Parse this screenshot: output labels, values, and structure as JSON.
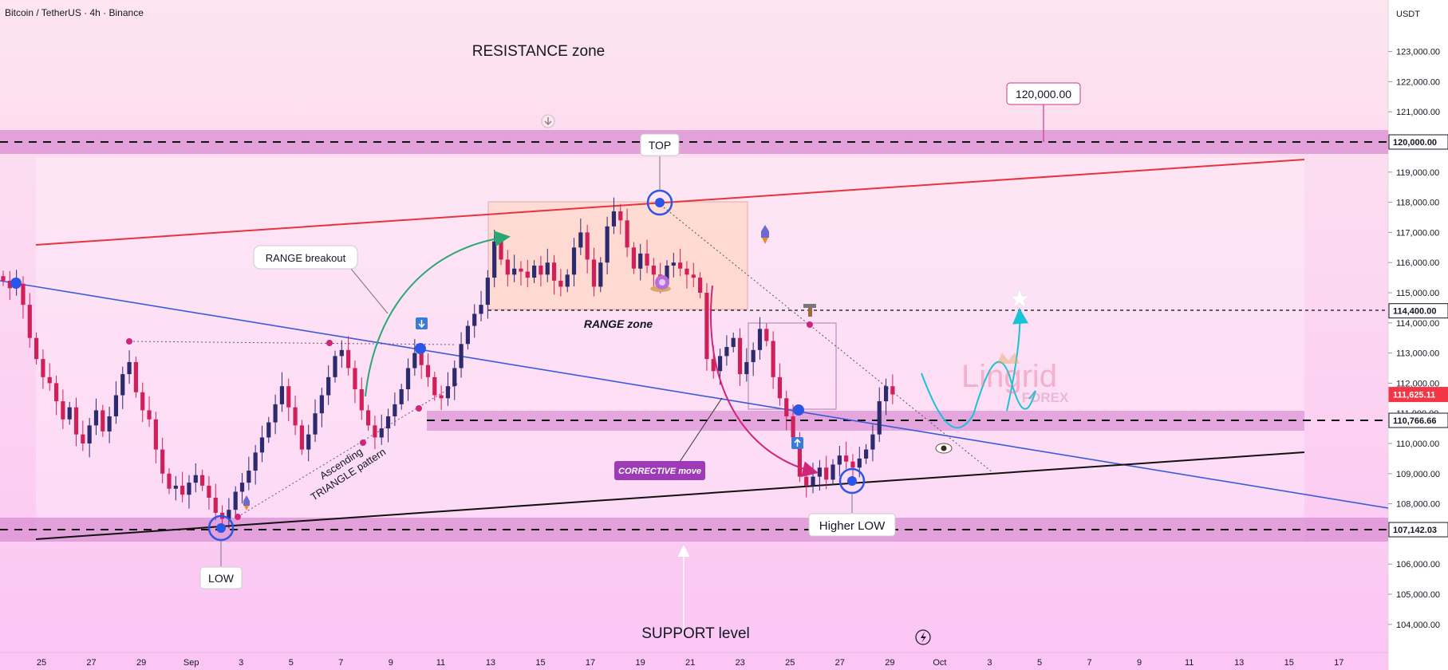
{
  "header": {
    "symbol": "Bitcoin / TetherUS · 4h · Binance",
    "currency": "USDT"
  },
  "y_axis_ticks": [
    "123,000.00",
    "122,000.00",
    "121,000.00",
    "119,000.00",
    "118,000.00",
    "117,000.00",
    "116,000.00",
    "115,000.00",
    "114,000.00",
    "113,000.00",
    "112,000.00",
    "111,000.00",
    "110,000.00",
    "109,000.00",
    "108,000.00",
    "106,000.00",
    "105,000.00",
    "104,000.00"
  ],
  "x_axis_ticks": [
    "25",
    "27",
    "29",
    "Sep",
    "3",
    "5",
    "7",
    "9",
    "11",
    "13",
    "15",
    "17",
    "19",
    "21",
    "23",
    "25",
    "27",
    "29",
    "Oct",
    "3",
    "5",
    "7",
    "9",
    "11",
    "13",
    "15",
    "17"
  ],
  "price_labels": [
    {
      "value": "120,000.00",
      "color": "#ffffff",
      "text_color": "#131722"
    },
    {
      "value": "114,400.00",
      "color": "#ffffff",
      "text_color": "#131722"
    },
    {
      "value": "111,625.11",
      "color": "#f23645",
      "text_color": "#ffffff"
    },
    {
      "value": "110,766.66",
      "color": "#ffffff",
      "text_color": "#131722"
    },
    {
      "value": "107,142.03",
      "color": "#ffffff",
      "text_color": "#131722"
    }
  ],
  "annotations": {
    "resistance_zone": "RESISTANCE zone",
    "support_level": "SUPPORT level",
    "top": "TOP",
    "low": "LOW",
    "higher_low": "Higher LOW",
    "range_breakout": "RANGE breakout",
    "range_zone": "RANGE zone",
    "corrective_move": "CORRECTIVE move",
    "triangle_line1": "Ascending",
    "triangle_line2": "TRIANGLE pattern",
    "target_callout": "120,000.00"
  },
  "watermark": {
    "line1": "Lingrid",
    "line2": "FOREX"
  },
  "colors": {
    "background_top": "#fde4ef",
    "background_bottom": "#fbc6f4",
    "zone": "#d98ed2",
    "up_candle": "#2b2b6e",
    "down_candle": "#d0205a",
    "resistance_line": "#e8333f",
    "descending_line": "#3a5bd9",
    "support_line": "#111111",
    "projection": "#19c3d6"
  },
  "chart_data": {
    "type": "candlestick",
    "symbol": "BTCUSDT",
    "timeframe": "4h",
    "ylim": [
      103500,
      124000
    ],
    "horizontal_levels": [
      120000,
      114400,
      110766.66,
      107142.03
    ],
    "last_price": 111625.11,
    "target": 114400,
    "zones": [
      {
        "name": "resistance",
        "low": 119600,
        "high": 120400
      },
      {
        "name": "support",
        "low": 106800,
        "high": 107500
      },
      {
        "name": "mid",
        "low": 110600,
        "high": 111200
      },
      {
        "name": "range",
        "low": 114400,
        "high": 118000
      }
    ],
    "key_points": {
      "low": 107142,
      "top": 117950,
      "higher_low": 108750
    },
    "closes": [
      115400,
      115150,
      115300,
      114600,
      113500,
      112800,
      112200,
      112000,
      111400,
      110800,
      111200,
      110300,
      110000,
      110600,
      111100,
      110400,
      110900,
      111600,
      112300,
      112700,
      111700,
      111100,
      110800,
      109800,
      109000,
      108500,
      108600,
      108300,
      108700,
      108950,
      108600,
      108200,
      107700,
      107500,
      107800,
      108400,
      108700,
      109100,
      109700,
      110200,
      110700,
      111300,
      111900,
      111200,
      110600,
      109800,
      110300,
      111000,
      111600,
      112200,
      112900,
      113100,
      112500,
      111800,
      111100,
      110600,
      110200,
      110500,
      110900,
      111300,
      111800,
      112500,
      113000,
      112600,
      112200,
      111600,
      111500,
      111900,
      112500,
      113300,
      113900,
      114300,
      114600,
      115500,
      116700,
      116100,
      115600,
      115800,
      115700,
      115500,
      115900,
      115600,
      116000,
      115400,
      115200,
      115600,
      116500,
      117000,
      116100,
      115200,
      116000,
      117200,
      117700,
      117400,
      116500,
      115800,
      116300,
      115900,
      115600,
      115300,
      115900,
      116000,
      115800,
      115600,
      115500,
      115000,
      112800,
      112400,
      112900,
      113200,
      113500,
      112300,
      112700,
      113100,
      113800,
      113400,
      112200,
      111500,
      110900,
      110200,
      108900,
      108600,
      108900,
      109200,
      108800,
      109300,
      109600,
      109400,
      109200,
      109500,
      109800,
      110300,
      111400,
      111900,
      111625
    ]
  }
}
